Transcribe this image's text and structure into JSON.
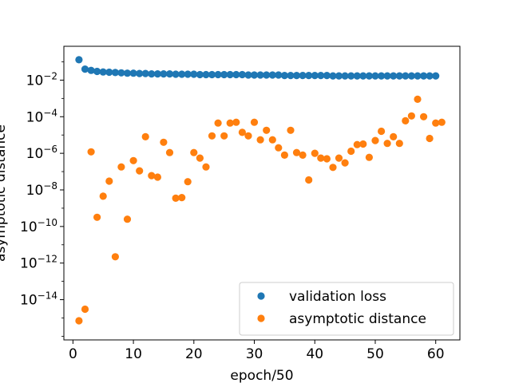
{
  "chart_data": {
    "type": "scatter",
    "xlabel": "epoch/50",
    "ylabel": "asymptotic distance",
    "yscale": "log",
    "xlim": [
      -1.5,
      64
    ],
    "ylim_log10": [
      -16.2,
      -0.15
    ],
    "xticks": [
      0,
      10,
      20,
      30,
      40,
      50,
      60
    ],
    "yticks_log10": [
      -14,
      -12,
      -10,
      -8,
      -6,
      -4,
      -2
    ],
    "grid": false,
    "legend_position": "lower-right",
    "series": [
      {
        "name": "validation loss",
        "color": "#1f77b4",
        "x": [
          1,
          2,
          3,
          4,
          5,
          6,
          7,
          8,
          9,
          10,
          11,
          12,
          13,
          14,
          15,
          16,
          17,
          18,
          19,
          20,
          21,
          22,
          23,
          24,
          25,
          26,
          27,
          28,
          29,
          30,
          31,
          32,
          33,
          34,
          35,
          36,
          37,
          38,
          39,
          40,
          41,
          42,
          43,
          44,
          45,
          46,
          47,
          48,
          49,
          50,
          51,
          52,
          53,
          54,
          55,
          56,
          57,
          58,
          59,
          60
        ],
        "y": [
          0.13,
          0.04,
          0.034,
          0.03,
          0.028,
          0.027,
          0.026,
          0.025,
          0.024,
          0.024,
          0.023,
          0.023,
          0.022,
          0.022,
          0.022,
          0.022,
          0.021,
          0.021,
          0.021,
          0.021,
          0.02,
          0.02,
          0.02,
          0.02,
          0.02,
          0.02,
          0.02,
          0.02,
          0.019,
          0.019,
          0.019,
          0.019,
          0.019,
          0.019,
          0.018,
          0.018,
          0.018,
          0.018,
          0.018,
          0.018,
          0.018,
          0.018,
          0.017,
          0.017,
          0.017,
          0.017,
          0.017,
          0.017,
          0.017,
          0.017,
          0.017,
          0.017,
          0.017,
          0.017,
          0.017,
          0.017,
          0.017,
          0.017,
          0.017,
          0.017
        ]
      },
      {
        "name": "asymptotic distance",
        "color": "#ff7f0e",
        "x": [
          1,
          2,
          3,
          4,
          5,
          6,
          7,
          8,
          9,
          10,
          11,
          12,
          13,
          14,
          15,
          16,
          17,
          18,
          19,
          20,
          21,
          22,
          23,
          24,
          25,
          26,
          27,
          28,
          29,
          30,
          31,
          32,
          33,
          34,
          35,
          36,
          37,
          38,
          39,
          40,
          41,
          42,
          43,
          44,
          45,
          46,
          47,
          48,
          49,
          50,
          51,
          52,
          53,
          54,
          55,
          56,
          57,
          58,
          59,
          60,
          61
        ],
        "y": [
          7e-16,
          3e-15,
          1.2e-06,
          3.2e-10,
          4.5e-09,
          3e-08,
          2.2e-12,
          1.8e-07,
          2.5e-10,
          4e-07,
          1.1e-07,
          8e-06,
          6e-08,
          5e-08,
          4e-06,
          1.1e-06,
          3.5e-09,
          3.8e-09,
          2.8e-08,
          1.1e-06,
          5.5e-07,
          1.8e-07,
          9e-06,
          4.5e-05,
          9e-06,
          4.5e-05,
          5e-05,
          1.4e-05,
          9e-06,
          5e-05,
          5.5e-06,
          1.8e-05,
          5.5e-06,
          2e-06,
          8e-07,
          1.8e-05,
          1.1e-06,
          8e-07,
          3.5e-08,
          1e-06,
          5.5e-07,
          5e-07,
          1.7e-07,
          5.5e-07,
          3e-07,
          1.3e-06,
          3e-06,
          3.2e-06,
          6e-07,
          5e-06,
          1.6e-05,
          3.5e-06,
          8e-06,
          3.5e-06,
          6e-05,
          0.00011,
          0.0009,
          0.0001,
          6.5e-06,
          4.5e-05,
          5e-05
        ]
      }
    ]
  }
}
